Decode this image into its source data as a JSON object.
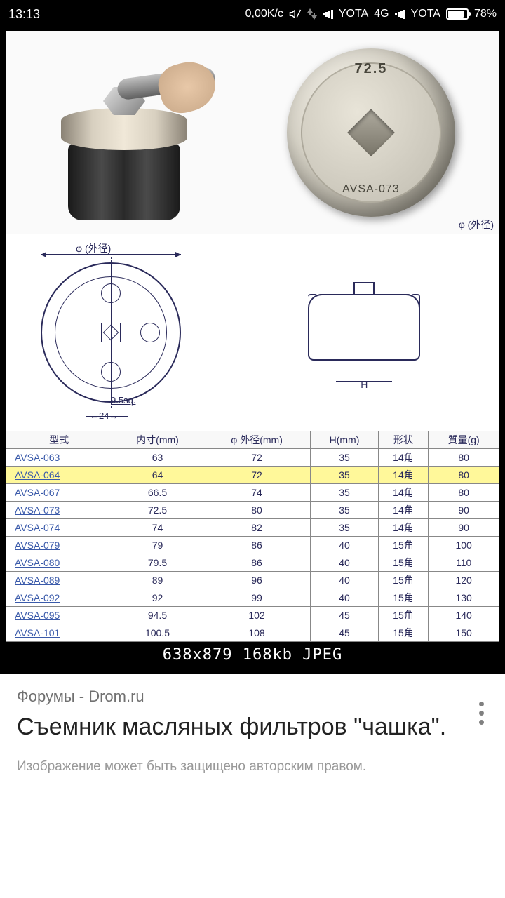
{
  "status_bar": {
    "time": "13:13",
    "speed": "0,00K/c",
    "carrier1": "YOTA",
    "network": "4G",
    "carrier2": "YOTA",
    "battery_pct": "78%",
    "battery_fill_width": "78%"
  },
  "product_photo": {
    "cap_marking_size": "72.5",
    "cap_marking_model": "AVSA-073",
    "phi_label": "φ (外径)"
  },
  "diagram": {
    "top_label": "φ (外径)",
    "square_dim": "9.5sq.",
    "width_dim": "24",
    "height_label": "H"
  },
  "table": {
    "columns": [
      "型式",
      "内寸(mm)",
      "φ 外径(mm)",
      "H(mm)",
      "形状",
      "質量(g)"
    ],
    "highlight_index": 1,
    "rows": [
      [
        "AVSA-063",
        "63",
        "72",
        "35",
        "14角",
        "80"
      ],
      [
        "AVSA-064",
        "64",
        "72",
        "35",
        "14角",
        "80"
      ],
      [
        "AVSA-067",
        "66.5",
        "74",
        "35",
        "14角",
        "80"
      ],
      [
        "AVSA-073",
        "72.5",
        "80",
        "35",
        "14角",
        "90"
      ],
      [
        "AVSA-074",
        "74",
        "82",
        "35",
        "14角",
        "90"
      ],
      [
        "AVSA-079",
        "79",
        "86",
        "40",
        "15角",
        "100"
      ],
      [
        "AVSA-080",
        "79.5",
        "86",
        "40",
        "15角",
        "110"
      ],
      [
        "AVSA-089",
        "89",
        "96",
        "40",
        "15角",
        "120"
      ],
      [
        "AVSA-092",
        "92",
        "99",
        "40",
        "15角",
        "130"
      ],
      [
        "AVSA-095",
        "94.5",
        "102",
        "45",
        "15角",
        "140"
      ],
      [
        "AVSA-101",
        "100.5",
        "108",
        "45",
        "15角",
        "150"
      ]
    ]
  },
  "image_footer": "638x879 168kb JPEG",
  "page": {
    "breadcrumb": "Форумы - Drom.ru",
    "title": "Съемник масляных фильтров \"чашка\".",
    "copyright": "Изображение может быть защищено авторским правом."
  },
  "colors": {
    "status_bg": "#000000",
    "table_border": "#888888",
    "link_color": "#3a5aaa",
    "highlight_bg": "#fff89a",
    "diagram_line": "#2a2a5a"
  }
}
